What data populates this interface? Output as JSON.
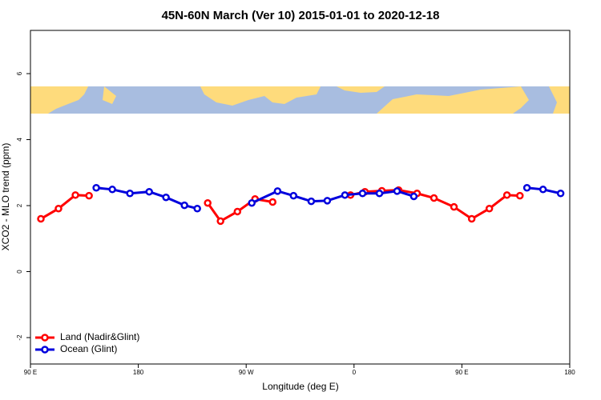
{
  "chart_data": {
    "type": "line",
    "title": "45N-60N March (Ver 10)   2015-01-01 to 2020-12-18",
    "xlabel": "Longitude (deg E)",
    "ylabel": "XCO2 - MLO trend (ppm)",
    "xlim": [
      90,
      540
    ],
    "ylim": [
      -2.8,
      7.31
    ],
    "xticks": [
      {
        "value": 90,
        "label": "90 E"
      },
      180,
      {
        "value": 270,
        "label": "90 W"
      },
      {
        "value": 360,
        "label": "0"
      },
      {
        "value": 450,
        "label": "90 E"
      },
      {
        "value": 540,
        "label": "180"
      }
    ],
    "yticks": [
      -2,
      0,
      2,
      4,
      6
    ],
    "legend": "bottom-left",
    "series": [
      {
        "name": "Land (Nadir&Glint)",
        "color": "#ff0000",
        "x": [
          98.7,
          113.4,
          127.5,
          138.9,
          null,
          237.9,
          248.6,
          262.7,
          277.4,
          292.1,
          null,
          357.1,
          369.1,
          383.2,
          397.2,
          412.6,
          426.7,
          443.4,
          458.2,
          472.9,
          487.6,
          498.4
        ],
        "values": [
          1.6,
          1.91,
          2.32,
          2.3,
          null,
          2.08,
          1.53,
          1.82,
          2.2,
          2.11,
          null,
          2.32,
          2.42,
          2.45,
          2.47,
          2.37,
          2.23,
          1.96,
          1.6,
          1.91,
          2.32,
          2.3
        ]
      },
      {
        "name": "Ocean (Glint)",
        "color": "#0000dd",
        "x": [
          144.9,
          158.3,
          173,
          189.1,
          203.1,
          218.5,
          229.2,
          null,
          274.7,
          296.2,
          309.5,
          324.3,
          337.7,
          352.4,
          367.1,
          381.2,
          395.9,
          409.9,
          null,
          504.3,
          517.7,
          532.4
        ],
        "values": [
          2.54,
          2.49,
          2.37,
          2.42,
          2.25,
          2.01,
          1.91,
          null,
          2.08,
          2.44,
          2.3,
          2.13,
          2.15,
          2.32,
          2.37,
          2.37,
          2.44,
          2.28,
          null,
          2.54,
          2.49,
          2.37
        ]
      }
    ]
  }
}
